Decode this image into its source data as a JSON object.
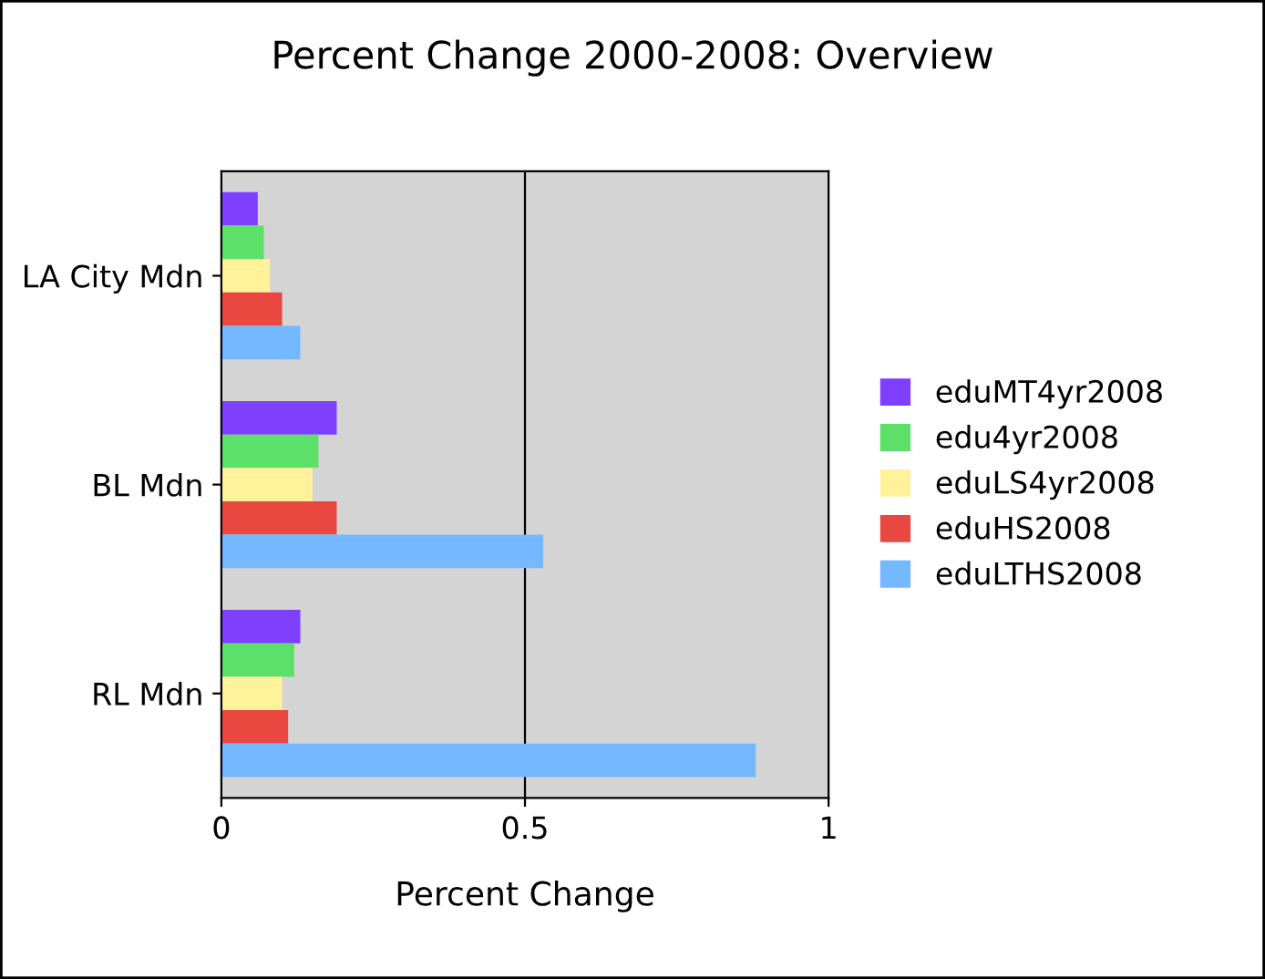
{
  "chart_data": {
    "type": "bar",
    "orientation": "horizontal",
    "title": "Percent Change 2000-2008: Overview",
    "xlabel": "Percent Change",
    "categories": [
      "LA City Mdn",
      "BL Mdn",
      "RL Mdn"
    ],
    "series": [
      {
        "name": "eduMT4yr2008",
        "color": "#7f3fff",
        "values": [
          0.06,
          0.19,
          0.13
        ]
      },
      {
        "name": "edu4yr2008",
        "color": "#5ce06a",
        "values": [
          0.07,
          0.16,
          0.12
        ]
      },
      {
        "name": "eduLS4yr2008",
        "color": "#fff29a",
        "values": [
          0.08,
          0.15,
          0.1
        ]
      },
      {
        "name": "eduHS2008",
        "color": "#e84840",
        "values": [
          0.1,
          0.19,
          0.11
        ]
      },
      {
        "name": "eduLTHS2008",
        "color": "#74b8ff",
        "values": [
          0.13,
          0.53,
          0.88
        ]
      }
    ],
    "xlim": [
      0,
      1
    ],
    "xticks": [
      0,
      0.5,
      1
    ],
    "grid": "x",
    "legend": "right"
  }
}
